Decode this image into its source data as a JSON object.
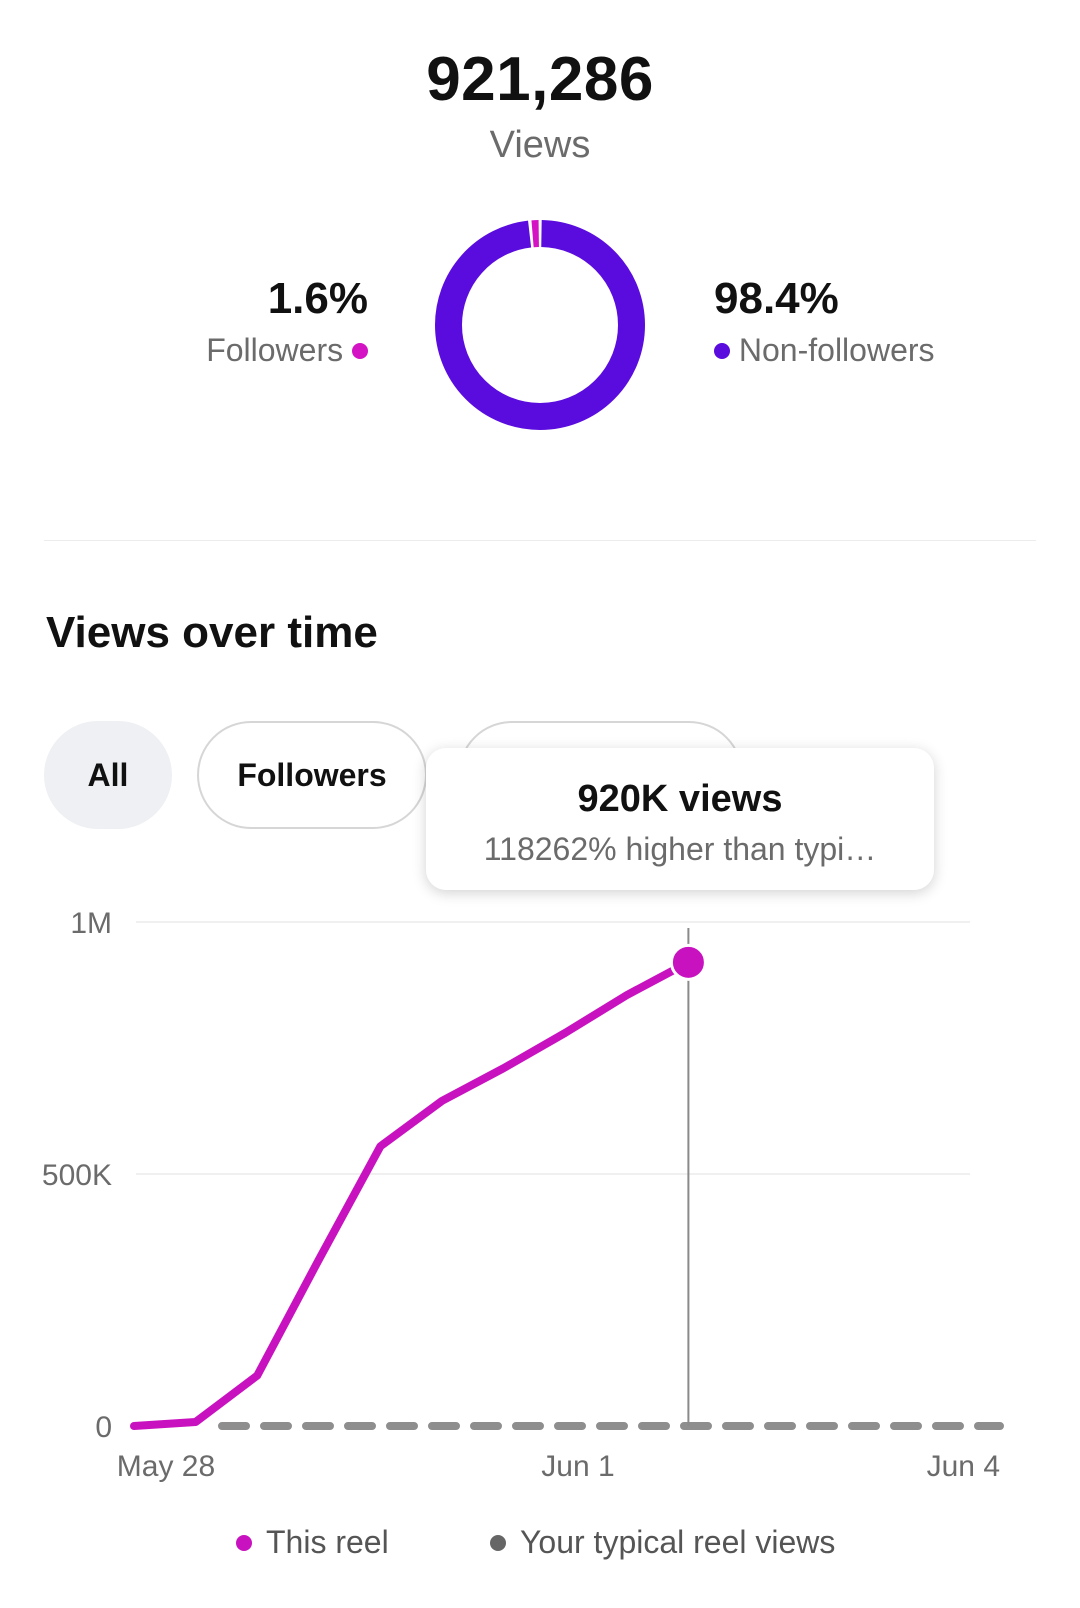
{
  "summary": {
    "total_views": "921,286",
    "total_label": "Views",
    "followers_pct": "1.6%",
    "followers_label": "Followers",
    "nonfollowers_pct": "98.4%",
    "nonfollowers_label": "Non-followers",
    "followers_fraction": 0.016,
    "colors": {
      "followers": "#d313c4",
      "nonfollowers": "#5a0cde"
    }
  },
  "section": {
    "title": "Views over time"
  },
  "filters": {
    "all_label": "All",
    "followers_label": "Followers",
    "third_label": ""
  },
  "tooltip": {
    "title": "920K views",
    "subtitle": "118262% higher than typi…"
  },
  "legend": {
    "this_reel": "This reel",
    "typical": "Your typical reel views"
  },
  "chart_data": {
    "type": "line",
    "y_tick_labels": [
      "0",
      "500K",
      "1M"
    ],
    "y_tick_values": [
      0,
      500000,
      1000000
    ],
    "ylim": [
      0,
      1000000
    ],
    "x_tick_labels": [
      "May 28",
      "Jun 1",
      "Jun 4"
    ],
    "grid": true,
    "legend_position": "bottom",
    "series": [
      {
        "name": "This reel",
        "color": "#c812c0",
        "style": "solid",
        "points": [
          {
            "x": "May 27",
            "y": 0
          },
          {
            "x": "May 28",
            "y": 8000
          },
          {
            "x": "May 29",
            "y": 100000
          },
          {
            "x": "May 30",
            "y": 330000
          },
          {
            "x": "May 31",
            "y": 555000
          },
          {
            "x": "Jun 1",
            "y": 645000
          },
          {
            "x": "Jun 2",
            "y": 710000
          },
          {
            "x": "Jun 3",
            "y": 780000
          },
          {
            "x": "Jun 4",
            "y": 855000
          },
          {
            "x": "Jun 5",
            "y": 920000
          }
        ]
      },
      {
        "name": "Your typical reel views",
        "color": "#8e8e8e",
        "style": "dashed",
        "points": [
          {
            "x": "May 28",
            "y": 0
          },
          {
            "x": "Jun 4",
            "y": 0
          }
        ]
      }
    ],
    "highlight_point": {
      "x": "Jun 5",
      "y": 920000
    }
  }
}
